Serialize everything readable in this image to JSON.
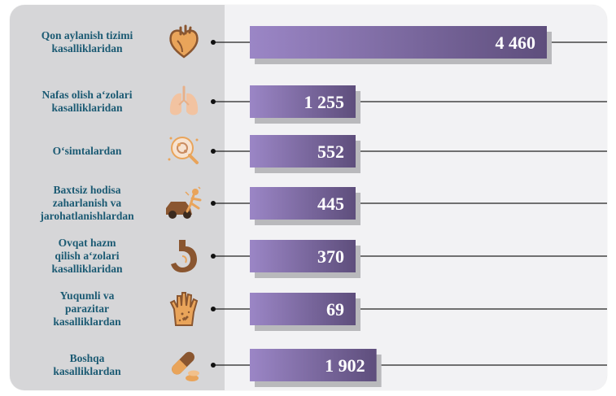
{
  "chart_data": {
    "type": "bar",
    "orientation": "horizontal",
    "categories": [
      "Qon aylanish tizimi kasalliklaridan",
      "Nafas olish a‘zolari kasalliklaridan",
      "O‘simtalardan",
      "Baxtsiz hodisa zaharlanish va jarohatlanishlardan",
      "Ovqat hazm qilish a‘zolari kasalliklaridan",
      "Yuqumli va parazitar kasalliklardan",
      "Boshqa kasalliklardan"
    ],
    "category_lines": [
      [
        "Qon aylanish tizimi",
        "kasalliklaridan"
      ],
      [
        "Nafas olish a‘zolari",
        "kasalliklaridan"
      ],
      [
        "O‘simtalardan"
      ],
      [
        "Baxtsiz hodisa",
        "zaharlanish va",
        "jarohatlanishlardan"
      ],
      [
        "Ovqat hazm",
        "qilish a‘zolari",
        "kasalliklaridan"
      ],
      [
        "Yuqumli va",
        "parazitar",
        "kasalliklardan"
      ],
      [
        "Boshqa",
        "kasalliklardan"
      ]
    ],
    "values": [
      4460,
      1255,
      552,
      445,
      370,
      69,
      1902
    ],
    "value_labels": [
      "4 460",
      "1 255",
      "552",
      "445",
      "370",
      "69",
      "1 902"
    ],
    "icons": [
      "heart-icon",
      "lungs-icon",
      "cell-magnifier-icon",
      "car-accident-icon",
      "stomach-icon",
      "hand-rash-icon",
      "pills-icon"
    ],
    "colors": {
      "bar_light": "#9b86c6",
      "bar_dark": "#5e4e7c",
      "shadow": "#b9b9bc",
      "label": "#1b5a73",
      "left_panel": "#d6d6d8",
      "icon_brown": "#8a5630",
      "icon_orange": "#e9a45a"
    },
    "title": "",
    "xlabel": "",
    "ylabel": "",
    "grid": false
  }
}
